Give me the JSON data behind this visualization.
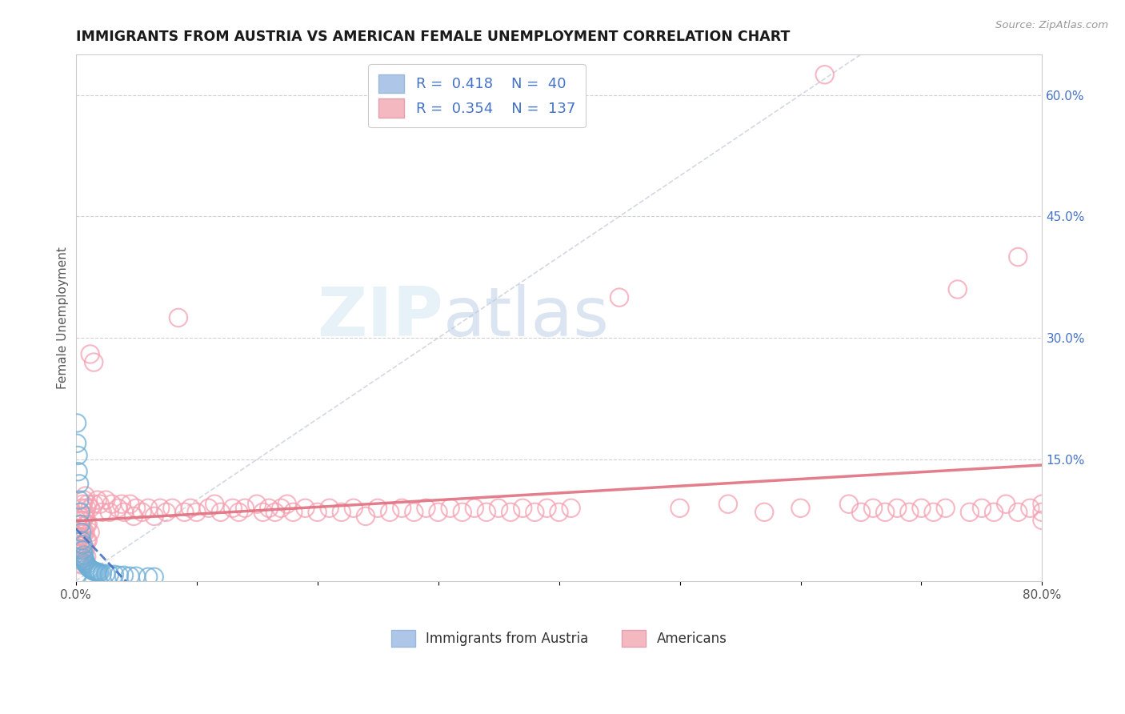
{
  "title": "IMMIGRANTS FROM AUSTRIA VS AMERICAN FEMALE UNEMPLOYMENT CORRELATION CHART",
  "source": "Source: ZipAtlas.com",
  "ylabel": "Female Unemployment",
  "watermark_zip": "ZIP",
  "watermark_atlas": "atlas",
  "xlim": [
    0,
    0.8
  ],
  "ylim": [
    0,
    0.65
  ],
  "xtick_positions": [
    0.0,
    0.1,
    0.2,
    0.3,
    0.4,
    0.5,
    0.6,
    0.7,
    0.8
  ],
  "xtick_labels": [
    "0.0%",
    "",
    "",
    "",
    "",
    "",
    "",
    "",
    "80.0%"
  ],
  "right_ytick_positions": [
    0.0,
    0.15,
    0.3,
    0.45,
    0.6
  ],
  "right_ytick_labels": [
    "",
    "15.0%",
    "30.0%",
    "45.0%",
    "60.0%"
  ],
  "blue_scatter_color": "#6eaed6",
  "pink_scatter_color": "#f4a0b0",
  "trend_blue_color": "#4472c4",
  "trend_pink_color": "#e07080",
  "title_color": "#1a1a1a",
  "title_fontsize": 12.5,
  "axis_label_color": "#555555",
  "right_tick_color": "#4472c4",
  "legend_text_color": "#4472c4",
  "background_color": "#ffffff",
  "grid_color": "#cccccc",
  "austria_points": [
    [
      0.001,
      0.195
    ],
    [
      0.001,
      0.17
    ],
    [
      0.002,
      0.155
    ],
    [
      0.002,
      0.135
    ],
    [
      0.003,
      0.12
    ],
    [
      0.003,
      0.1
    ],
    [
      0.004,
      0.085
    ],
    [
      0.004,
      0.07
    ],
    [
      0.005,
      0.06
    ],
    [
      0.005,
      0.05
    ],
    [
      0.006,
      0.045
    ],
    [
      0.006,
      0.038
    ],
    [
      0.007,
      0.032
    ],
    [
      0.007,
      0.028
    ],
    [
      0.008,
      0.025
    ],
    [
      0.008,
      0.022
    ],
    [
      0.009,
      0.02
    ],
    [
      0.01,
      0.018
    ],
    [
      0.011,
      0.016
    ],
    [
      0.012,
      0.015
    ],
    [
      0.013,
      0.014
    ],
    [
      0.014,
      0.013
    ],
    [
      0.015,
      0.012
    ],
    [
      0.016,
      0.012
    ],
    [
      0.017,
      0.011
    ],
    [
      0.018,
      0.011
    ],
    [
      0.019,
      0.01
    ],
    [
      0.02,
      0.01
    ],
    [
      0.022,
      0.009
    ],
    [
      0.025,
      0.009
    ],
    [
      0.028,
      0.008
    ],
    [
      0.032,
      0.008
    ],
    [
      0.036,
      0.007
    ],
    [
      0.04,
      0.007
    ],
    [
      0.045,
      0.006
    ],
    [
      0.05,
      0.006
    ],
    [
      0.06,
      0.005
    ],
    [
      0.065,
      0.005
    ],
    [
      0.001,
      0.008
    ],
    [
      0.001,
      0.005
    ]
  ],
  "american_points": [
    [
      0.001,
      0.055
    ],
    [
      0.001,
      0.045
    ],
    [
      0.001,
      0.038
    ],
    [
      0.001,
      0.03
    ],
    [
      0.002,
      0.07
    ],
    [
      0.002,
      0.06
    ],
    [
      0.002,
      0.05
    ],
    [
      0.002,
      0.04
    ],
    [
      0.002,
      0.03
    ],
    [
      0.002,
      0.022
    ],
    [
      0.003,
      0.08
    ],
    [
      0.003,
      0.065
    ],
    [
      0.003,
      0.055
    ],
    [
      0.003,
      0.045
    ],
    [
      0.003,
      0.035
    ],
    [
      0.003,
      0.025
    ],
    [
      0.004,
      0.085
    ],
    [
      0.004,
      0.07
    ],
    [
      0.004,
      0.055
    ],
    [
      0.004,
      0.04
    ],
    [
      0.005,
      0.09
    ],
    [
      0.005,
      0.075
    ],
    [
      0.005,
      0.06
    ],
    [
      0.005,
      0.045
    ],
    [
      0.005,
      0.03
    ],
    [
      0.005,
      0.02
    ],
    [
      0.006,
      0.095
    ],
    [
      0.006,
      0.075
    ],
    [
      0.006,
      0.06
    ],
    [
      0.006,
      0.045
    ],
    [
      0.006,
      0.03
    ],
    [
      0.007,
      0.1
    ],
    [
      0.007,
      0.08
    ],
    [
      0.007,
      0.06
    ],
    [
      0.007,
      0.04
    ],
    [
      0.007,
      0.025
    ],
    [
      0.008,
      0.105
    ],
    [
      0.008,
      0.08
    ],
    [
      0.008,
      0.06
    ],
    [
      0.008,
      0.04
    ],
    [
      0.009,
      0.09
    ],
    [
      0.009,
      0.07
    ],
    [
      0.009,
      0.05
    ],
    [
      0.009,
      0.03
    ],
    [
      0.01,
      0.095
    ],
    [
      0.01,
      0.07
    ],
    [
      0.01,
      0.05
    ],
    [
      0.012,
      0.28
    ],
    [
      0.012,
      0.09
    ],
    [
      0.012,
      0.06
    ],
    [
      0.015,
      0.27
    ],
    [
      0.015,
      0.095
    ],
    [
      0.018,
      0.1
    ],
    [
      0.02,
      0.095
    ],
    [
      0.022,
      0.085
    ],
    [
      0.025,
      0.1
    ],
    [
      0.028,
      0.085
    ],
    [
      0.03,
      0.095
    ],
    [
      0.035,
      0.09
    ],
    [
      0.038,
      0.095
    ],
    [
      0.04,
      0.085
    ],
    [
      0.045,
      0.095
    ],
    [
      0.048,
      0.08
    ],
    [
      0.05,
      0.09
    ],
    [
      0.055,
      0.085
    ],
    [
      0.06,
      0.09
    ],
    [
      0.065,
      0.08
    ],
    [
      0.07,
      0.09
    ],
    [
      0.075,
      0.085
    ],
    [
      0.08,
      0.09
    ],
    [
      0.085,
      0.325
    ],
    [
      0.09,
      0.085
    ],
    [
      0.095,
      0.09
    ],
    [
      0.1,
      0.085
    ],
    [
      0.11,
      0.09
    ],
    [
      0.115,
      0.095
    ],
    [
      0.12,
      0.085
    ],
    [
      0.13,
      0.09
    ],
    [
      0.135,
      0.085
    ],
    [
      0.14,
      0.09
    ],
    [
      0.15,
      0.095
    ],
    [
      0.155,
      0.085
    ],
    [
      0.16,
      0.09
    ],
    [
      0.165,
      0.085
    ],
    [
      0.17,
      0.09
    ],
    [
      0.175,
      0.095
    ],
    [
      0.18,
      0.085
    ],
    [
      0.19,
      0.09
    ],
    [
      0.2,
      0.085
    ],
    [
      0.21,
      0.09
    ],
    [
      0.22,
      0.085
    ],
    [
      0.23,
      0.09
    ],
    [
      0.24,
      0.08
    ],
    [
      0.25,
      0.09
    ],
    [
      0.26,
      0.085
    ],
    [
      0.27,
      0.09
    ],
    [
      0.28,
      0.085
    ],
    [
      0.29,
      0.09
    ],
    [
      0.3,
      0.085
    ],
    [
      0.31,
      0.09
    ],
    [
      0.32,
      0.085
    ],
    [
      0.33,
      0.09
    ],
    [
      0.34,
      0.085
    ],
    [
      0.35,
      0.09
    ],
    [
      0.36,
      0.085
    ],
    [
      0.37,
      0.09
    ],
    [
      0.38,
      0.085
    ],
    [
      0.39,
      0.09
    ],
    [
      0.4,
      0.085
    ],
    [
      0.41,
      0.09
    ],
    [
      0.45,
      0.35
    ],
    [
      0.5,
      0.09
    ],
    [
      0.54,
      0.095
    ],
    [
      0.57,
      0.085
    ],
    [
      0.6,
      0.09
    ],
    [
      0.62,
      0.625
    ],
    [
      0.64,
      0.095
    ],
    [
      0.65,
      0.085
    ],
    [
      0.66,
      0.09
    ],
    [
      0.67,
      0.085
    ],
    [
      0.68,
      0.09
    ],
    [
      0.69,
      0.085
    ],
    [
      0.7,
      0.09
    ],
    [
      0.71,
      0.085
    ],
    [
      0.72,
      0.09
    ],
    [
      0.73,
      0.36
    ],
    [
      0.74,
      0.085
    ],
    [
      0.75,
      0.09
    ],
    [
      0.76,
      0.085
    ],
    [
      0.77,
      0.095
    ],
    [
      0.78,
      0.085
    ],
    [
      0.79,
      0.09
    ],
    [
      0.8,
      0.085
    ],
    [
      0.78,
      0.4
    ],
    [
      0.8,
      0.095
    ],
    [
      0.8,
      0.075
    ]
  ]
}
